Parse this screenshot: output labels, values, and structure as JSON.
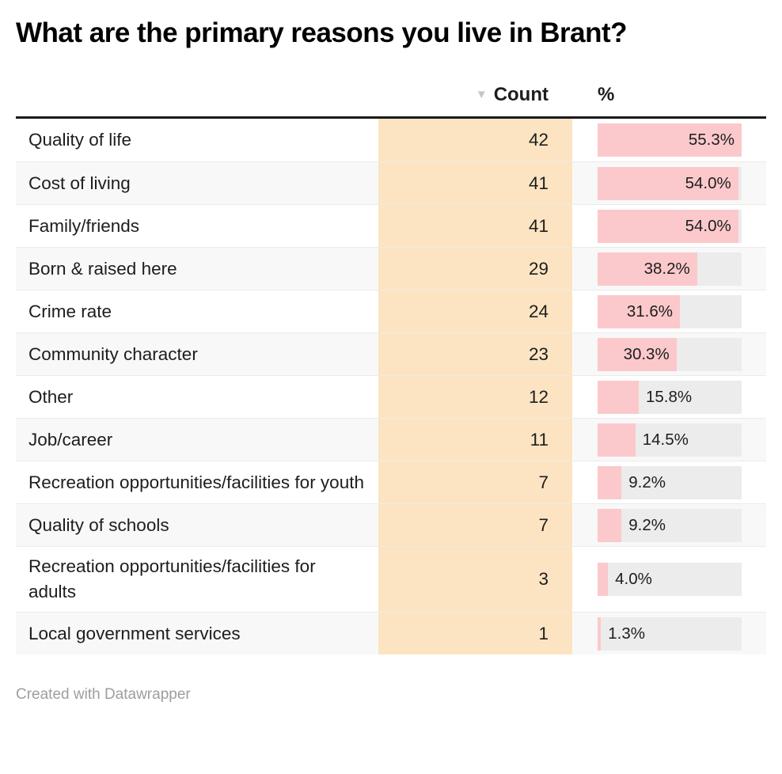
{
  "title": "What are the primary reasons you live in Brant?",
  "table": {
    "sort_icon": "▼",
    "columns": {
      "count_label": "Count",
      "percent_label": "%"
    },
    "bar_max_percent": 55.3,
    "rows": [
      {
        "label": "Quality of life",
        "count": "42",
        "percent": 55.3,
        "percent_text": "55.3%"
      },
      {
        "label": "Cost of living",
        "count": "41",
        "percent": 54.0,
        "percent_text": "54.0%"
      },
      {
        "label": "Family/friends",
        "count": "41",
        "percent": 54.0,
        "percent_text": "54.0%"
      },
      {
        "label": "Born & raised here",
        "count": "29",
        "percent": 38.2,
        "percent_text": "38.2%"
      },
      {
        "label": "Crime rate",
        "count": "24",
        "percent": 31.6,
        "percent_text": "31.6%"
      },
      {
        "label": "Community character",
        "count": "23",
        "percent": 30.3,
        "percent_text": "30.3%"
      },
      {
        "label": "Other",
        "count": "12",
        "percent": 15.8,
        "percent_text": "15.8%"
      },
      {
        "label": "Job/career",
        "count": "11",
        "percent": 14.5,
        "percent_text": "14.5%"
      },
      {
        "label": "Recreation opportunities/facilities for youth",
        "count": "7",
        "percent": 9.2,
        "percent_text": "9.2%"
      },
      {
        "label": "Quality of schools",
        "count": "7",
        "percent": 9.2,
        "percent_text": "9.2%"
      },
      {
        "label": "Recreation opportunities/facilities for adults",
        "count": "3",
        "percent": 4.0,
        "percent_text": "4.0%"
      },
      {
        "label": "Local government services",
        "count": "1",
        "percent": 1.3,
        "percent_text": "1.3%"
      }
    ]
  },
  "footer": {
    "credit": "Created with Datawrapper"
  },
  "colors": {
    "count_bg": "#fce4c2",
    "bar_fill": "#fbc9cb",
    "bar_track": "#ececec",
    "row_stripe": "#f8f8f8",
    "header_rule": "#1a1a1a",
    "sort_arrow": "#c6c6c6",
    "muted": "#9e9e9e",
    "text": "#1d1d1d"
  },
  "chart_data": {
    "type": "table",
    "title": "What are the primary reasons you live in Brant?",
    "columns": [
      "Reason",
      "Count",
      "%"
    ],
    "rows": [
      [
        "Quality of life",
        42,
        55.3
      ],
      [
        "Cost of living",
        41,
        54.0
      ],
      [
        "Family/friends",
        41,
        54.0
      ],
      [
        "Born & raised here",
        29,
        38.2
      ],
      [
        "Crime rate",
        24,
        31.6
      ],
      [
        "Community character",
        23,
        30.3
      ],
      [
        "Other",
        12,
        15.8
      ],
      [
        "Job/career",
        11,
        14.5
      ],
      [
        "Recreation opportunities/facilities for youth",
        7,
        9.2
      ],
      [
        "Quality of schools",
        7,
        9.2
      ],
      [
        "Recreation opportunities/facilities for adults",
        3,
        4.0
      ],
      [
        "Local government services",
        1,
        1.3
      ]
    ],
    "bar_column": "%",
    "bar_axis_max": 55.3,
    "sort": {
      "column": "Count",
      "direction": "desc"
    },
    "credit": "Created with Datawrapper"
  }
}
